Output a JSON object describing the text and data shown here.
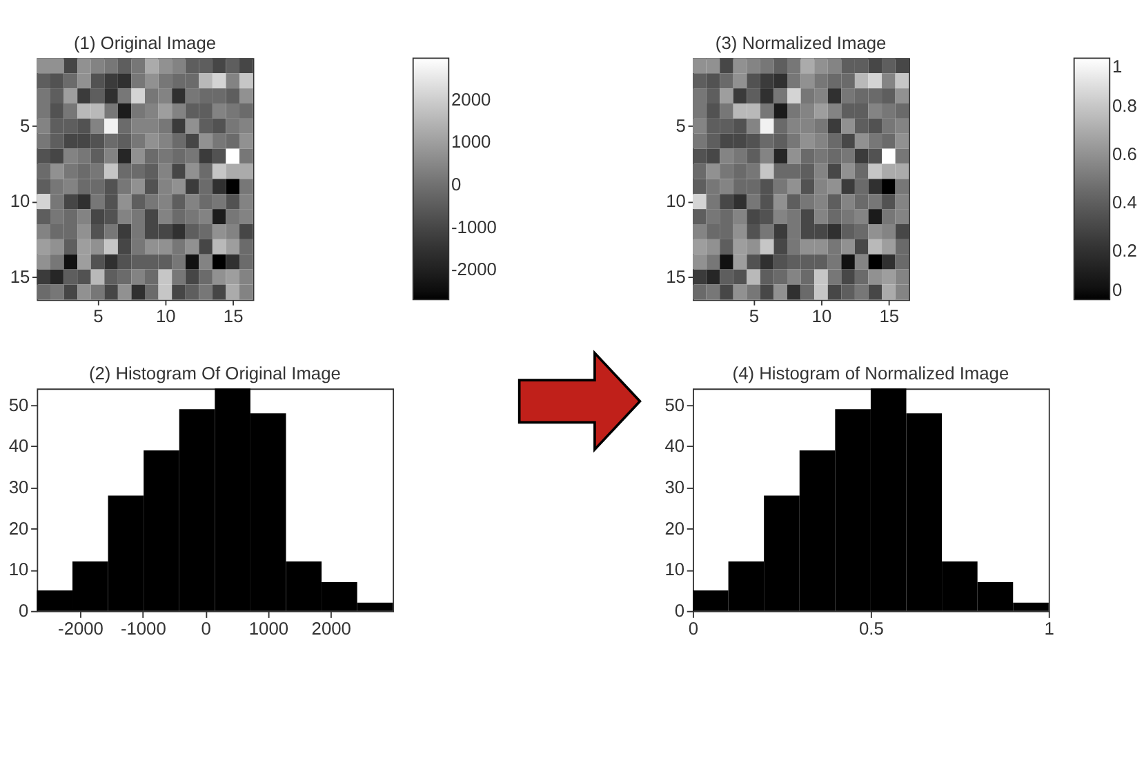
{
  "chart_data": [
    {
      "type": "heatmap",
      "title": "(1) Original Image",
      "categories": [
        null,
        null,
        null,
        null,
        "5",
        null,
        null,
        null,
        null,
        "10",
        null,
        null,
        null,
        null,
        "15",
        null
      ],
      "y_categories": [
        null,
        null,
        null,
        null,
        "5",
        null,
        null,
        null,
        null,
        "10",
        null,
        null,
        null,
        null,
        "15",
        null
      ],
      "clim": [
        -2690,
        2990
      ],
      "cticks": [
        -2000,
        -1000,
        0,
        1000,
        2000
      ],
      "cells": [
        [
          720,
          720,
          -990,
          720,
          430,
          150,
          -420,
          150,
          1290,
          720,
          430,
          -420,
          -420,
          -990,
          -420,
          -990
        ],
        [
          -420,
          -700,
          -130,
          720,
          -700,
          -1270,
          -1550,
          150,
          720,
          150,
          -130,
          -130,
          1570,
          2140,
          430,
          1850
        ],
        [
          150,
          -420,
          1000,
          -1270,
          -420,
          -1550,
          150,
          2140,
          150,
          430,
          -1550,
          150,
          -130,
          -130,
          -420,
          720
        ],
        [
          150,
          -700,
          150,
          1570,
          1570,
          150,
          -2120,
          150,
          430,
          1000,
          430,
          -420,
          -420,
          430,
          150,
          -130
        ],
        [
          430,
          -420,
          -420,
          -700,
          430,
          2710,
          -130,
          430,
          430,
          150,
          -1270,
          720,
          -420,
          -700,
          150,
          430
        ],
        [
          150,
          -420,
          -990,
          -990,
          -700,
          -130,
          -420,
          150,
          720,
          430,
          -130,
          -990,
          720,
          150,
          -130,
          720
        ],
        [
          -700,
          -990,
          430,
          150,
          -420,
          430,
          -1840,
          720,
          -130,
          150,
          -130,
          150,
          -1270,
          -700,
          2990,
          150
        ],
        [
          -130,
          720,
          150,
          -130,
          150,
          1850,
          -130,
          -130,
          -420,
          430,
          -990,
          720,
          -130,
          1850,
          1290,
          1290
        ],
        [
          -420,
          150,
          430,
          -130,
          -130,
          -700,
          150,
          720,
          -700,
          430,
          720,
          -1270,
          -130,
          -1550,
          -2690,
          150
        ],
        [
          2140,
          150,
          -990,
          -1550,
          150,
          -700,
          720,
          -420,
          150,
          430,
          -420,
          430,
          -130,
          150,
          -700,
          430
        ],
        [
          -420,
          150,
          -130,
          430,
          -990,
          -700,
          430,
          150,
          -990,
          430,
          -130,
          150,
          430,
          -2120,
          150,
          430
        ],
        [
          430,
          -130,
          -130,
          720,
          -700,
          150,
          -1270,
          150,
          -990,
          -990,
          -1550,
          -420,
          -130,
          720,
          430,
          -990
        ],
        [
          1000,
          720,
          -420,
          1000,
          720,
          1850,
          -990,
          150,
          720,
          720,
          150,
          720,
          -990,
          1570,
          1000,
          -130
        ],
        [
          720,
          150,
          -2410,
          1000,
          -700,
          -1550,
          -700,
          -420,
          -420,
          -420,
          150,
          -2410,
          430,
          -2690,
          -1550,
          -130
        ],
        [
          -1270,
          -1840,
          -420,
          -700,
          1570,
          -420,
          -130,
          430,
          -130,
          1850,
          150,
          -990,
          -130,
          720,
          1000,
          430
        ],
        [
          -130,
          150,
          -990,
          720,
          150,
          -990,
          720,
          -1550,
          -130,
          1850,
          -990,
          -420,
          150,
          -990,
          1290,
          430
        ]
      ]
    },
    {
      "type": "heatmap",
      "title": "(3) Normalized Image",
      "categories": [
        null,
        null,
        null,
        null,
        "5",
        null,
        null,
        null,
        null,
        "10",
        null,
        null,
        null,
        null,
        "15",
        null
      ],
      "y_categories": [
        null,
        null,
        null,
        null,
        "5",
        null,
        null,
        null,
        null,
        "10",
        null,
        null,
        null,
        null,
        "15",
        null
      ],
      "clim": [
        0,
        1
      ],
      "cticks": [
        0,
        0.2,
        0.4,
        0.6,
        0.8,
        1
      ],
      "cells": [
        [
          0.6,
          0.6,
          0.3,
          0.6,
          0.55,
          0.5,
          0.4,
          0.5,
          0.7,
          0.6,
          0.55,
          0.4,
          0.4,
          0.3,
          0.4,
          0.3
        ],
        [
          0.4,
          0.35,
          0.45,
          0.6,
          0.35,
          0.25,
          0.2,
          0.5,
          0.6,
          0.5,
          0.45,
          0.45,
          0.75,
          0.85,
          0.55,
          0.8
        ],
        [
          0.5,
          0.4,
          0.65,
          0.25,
          0.4,
          0.2,
          0.5,
          0.85,
          0.5,
          0.55,
          0.2,
          0.5,
          0.45,
          0.45,
          0.4,
          0.6
        ],
        [
          0.5,
          0.35,
          0.5,
          0.75,
          0.75,
          0.5,
          0.1,
          0.5,
          0.55,
          0.65,
          0.55,
          0.4,
          0.4,
          0.55,
          0.5,
          0.45
        ],
        [
          0.55,
          0.4,
          0.4,
          0.35,
          0.55,
          0.95,
          0.45,
          0.55,
          0.55,
          0.5,
          0.25,
          0.6,
          0.4,
          0.35,
          0.5,
          0.55
        ],
        [
          0.5,
          0.4,
          0.3,
          0.3,
          0.35,
          0.45,
          0.4,
          0.5,
          0.6,
          0.55,
          0.45,
          0.3,
          0.6,
          0.5,
          0.45,
          0.6
        ],
        [
          0.35,
          0.3,
          0.55,
          0.5,
          0.4,
          0.55,
          0.15,
          0.6,
          0.45,
          0.5,
          0.45,
          0.5,
          0.25,
          0.35,
          1.0,
          0.5
        ],
        [
          0.45,
          0.6,
          0.5,
          0.45,
          0.5,
          0.8,
          0.45,
          0.45,
          0.4,
          0.55,
          0.3,
          0.6,
          0.45,
          0.8,
          0.7,
          0.7
        ],
        [
          0.4,
          0.5,
          0.55,
          0.45,
          0.45,
          0.35,
          0.5,
          0.6,
          0.35,
          0.55,
          0.6,
          0.25,
          0.45,
          0.2,
          0.0,
          0.5
        ],
        [
          0.85,
          0.5,
          0.3,
          0.2,
          0.5,
          0.35,
          0.6,
          0.4,
          0.5,
          0.55,
          0.4,
          0.55,
          0.45,
          0.5,
          0.35,
          0.55
        ],
        [
          0.4,
          0.5,
          0.45,
          0.55,
          0.3,
          0.35,
          0.55,
          0.5,
          0.3,
          0.55,
          0.45,
          0.5,
          0.55,
          0.1,
          0.5,
          0.55
        ],
        [
          0.55,
          0.45,
          0.45,
          0.6,
          0.35,
          0.5,
          0.25,
          0.5,
          0.3,
          0.3,
          0.2,
          0.4,
          0.45,
          0.6,
          0.55,
          0.3
        ],
        [
          0.65,
          0.6,
          0.4,
          0.65,
          0.6,
          0.8,
          0.3,
          0.5,
          0.6,
          0.6,
          0.5,
          0.6,
          0.3,
          0.75,
          0.65,
          0.45
        ],
        [
          0.6,
          0.5,
          0.05,
          0.65,
          0.35,
          0.2,
          0.35,
          0.4,
          0.4,
          0.4,
          0.5,
          0.05,
          0.55,
          0.0,
          0.2,
          0.45
        ],
        [
          0.25,
          0.15,
          0.4,
          0.35,
          0.75,
          0.4,
          0.45,
          0.55,
          0.45,
          0.8,
          0.5,
          0.3,
          0.45,
          0.6,
          0.65,
          0.55
        ],
        [
          0.45,
          0.5,
          0.3,
          0.6,
          0.5,
          0.3,
          0.6,
          0.2,
          0.45,
          0.8,
          0.3,
          0.4,
          0.5,
          0.3,
          0.7,
          0.55
        ]
      ]
    },
    {
      "type": "histogram",
      "title": "(2) Histogram Of Original Image",
      "color": "#000000",
      "bins": [
        -2690,
        -2122,
        -1554,
        -986,
        -418,
        150,
        718,
        1286,
        1854,
        2422,
        2990
      ],
      "values": [
        5,
        12,
        28,
        39,
        49,
        54,
        48,
        12,
        7,
        2
      ],
      "xlim": [
        -2690,
        2990
      ],
      "xticks": [
        -2000,
        -1000,
        0,
        1000,
        2000
      ],
      "ylim": [
        0,
        54
      ],
      "yticks": [
        0,
        10,
        20,
        30,
        40,
        50
      ]
    },
    {
      "type": "histogram",
      "title": "(4) Histogram of Normalized Image",
      "color": "#000000",
      "bins": [
        0,
        0.1,
        0.2,
        0.3,
        0.4,
        0.5,
        0.6,
        0.7,
        0.8,
        0.9,
        1
      ],
      "values": [
        5,
        12,
        28,
        39,
        49,
        54,
        48,
        12,
        7,
        2
      ],
      "xlim": [
        0,
        1
      ],
      "xticks": [
        0,
        0.5,
        1
      ],
      "ylim": [
        0,
        54
      ],
      "yticks": [
        0,
        10,
        20,
        30,
        40,
        50
      ]
    }
  ]
}
